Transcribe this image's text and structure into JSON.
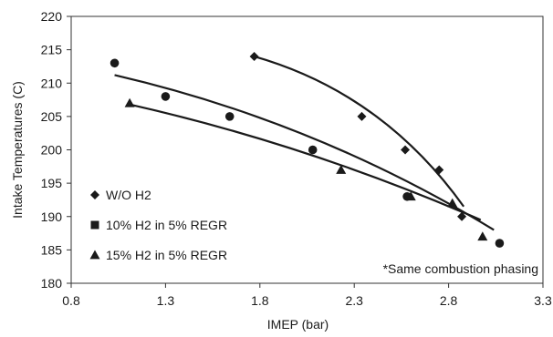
{
  "chart_data": {
    "type": "scatter",
    "title": "",
    "xlabel": "IMEP (bar)",
    "ylabel": "Intake Temperatures (C)",
    "xlim": [
      0.8,
      3.3
    ],
    "ylim": [
      180,
      220
    ],
    "x_ticks": [
      "0.8",
      "1.3",
      "1.8",
      "2.3",
      "2.8",
      "3.3"
    ],
    "y_ticks": [
      "180",
      "185",
      "190",
      "195",
      "200",
      "205",
      "210",
      "215",
      "220"
    ],
    "grid": false,
    "legend_position": "lower-left",
    "annotation": "*Same combustion phasing",
    "series": [
      {
        "name": "W/O H2",
        "marker": "diamond",
        "color": "#1a1a1a",
        "x": [
          1.77,
          2.34,
          2.57,
          2.75,
          2.87
        ],
        "y": [
          214,
          205,
          200,
          197,
          190
        ],
        "trend": {
          "from": [
            1.77,
            214
          ],
          "ctrl": [
            2.45,
            208.5
          ],
          "to": [
            2.88,
            191.5
          ]
        }
      },
      {
        "name": "10% H2 in 5% REGR",
        "marker": "circle",
        "color": "#1a1a1a",
        "x": [
          1.03,
          1.3,
          1.64,
          2.08,
          2.58,
          3.07
        ],
        "y": [
          213,
          208,
          205,
          200,
          193,
          186
        ],
        "trend": {
          "from": [
            1.03,
            211.2
          ],
          "ctrl": [
            2.1,
            204.2
          ],
          "to": [
            3.04,
            188
          ]
        }
      },
      {
        "name": "15% H2 in 5% REGR",
        "marker": "triangle",
        "color": "#1a1a1a",
        "x": [
          1.11,
          2.23,
          2.6,
          2.82,
          2.98
        ],
        "y": [
          207,
          197,
          193,
          192,
          187
        ],
        "trend": {
          "from": [
            1.11,
            206.8
          ],
          "ctrl": [
            2.05,
            200.8
          ],
          "to": [
            2.97,
            189.5
          ]
        }
      }
    ]
  }
}
